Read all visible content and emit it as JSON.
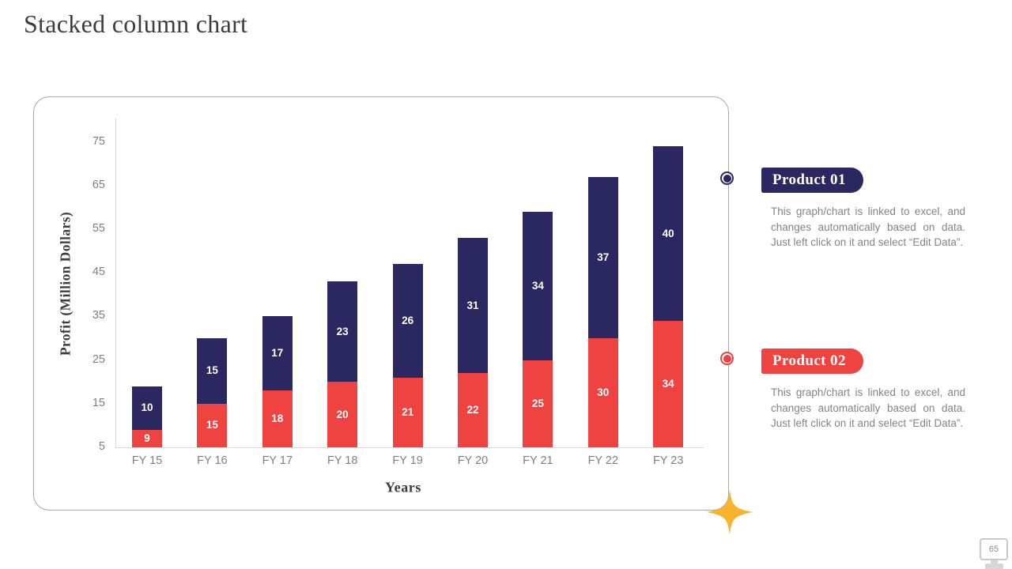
{
  "slide": {
    "title": "Stacked column chart",
    "page_number": "65"
  },
  "chart_data": {
    "type": "bar",
    "stacked": true,
    "categories": [
      "FY 15",
      "FY 16",
      "FY 17",
      "FY 18",
      "FY 19",
      "FY 20",
      "FY 21",
      "FY 22",
      "FY 23"
    ],
    "series": [
      {
        "name": "Product 02",
        "color": "#ee4340",
        "values": [
          9,
          15,
          18,
          20,
          21,
          22,
          25,
          30,
          34
        ]
      },
      {
        "name": "Product 01",
        "color": "#2b2761",
        "values": [
          10,
          15,
          17,
          23,
          26,
          31,
          34,
          37,
          40
        ]
      }
    ],
    "xlabel": "Years",
    "ylabel": "Profit (Million Dollars)",
    "y_ticks": [
      5,
      15,
      25,
      35,
      45,
      55,
      65,
      75
    ],
    "y_min": 5,
    "y_max": 80,
    "grid": false,
    "legend_position": "right",
    "bar_label_color": "#ffffff"
  },
  "legend": {
    "items": [
      {
        "label": "Product 01",
        "color": "#2b2761",
        "description": "This graph/chart is linked to excel, and changes automatically based on data. Just left click on it and select “Edit Data”."
      },
      {
        "label": "Product 02",
        "color": "#ee4340",
        "description": "This graph/chart is linked to excel, and changes automatically based on data. Just left click on it and select “Edit Data”."
      }
    ]
  },
  "decorations": {
    "star_icon": "four-point-star",
    "star_color": "#f7b32b",
    "page_icon": "monitor-icon"
  }
}
